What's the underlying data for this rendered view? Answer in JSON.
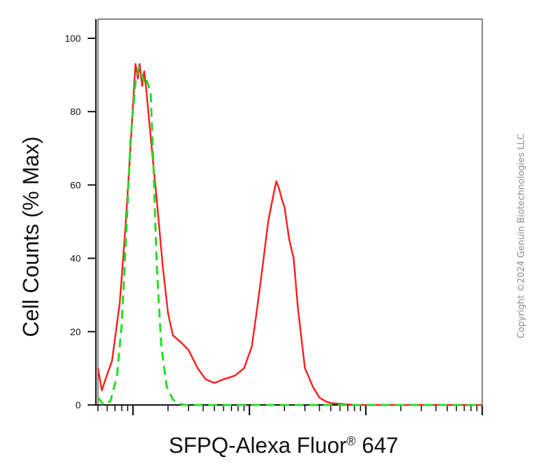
{
  "chart_data": {
    "type": "line",
    "xlabel": "SFPQ-Alexa Fluor",
    "xlabel_superscript": "®",
    "xlabel_suffix": " 647",
    "ylabel": "Cell Counts (% Max)",
    "ylim": [
      0,
      100
    ],
    "yticks": [
      "0",
      "20",
      "40",
      "60",
      "80",
      "100"
    ],
    "xscale": "log",
    "xlim": [
      0.5,
      1000
    ],
    "grid": false,
    "series": [
      {
        "color": "#ff2020",
        "style": "solid",
        "x": [
          0.5,
          0.54,
          0.58,
          0.66,
          0.77,
          0.86,
          0.95,
          1.0,
          1.05,
          1.1,
          1.14,
          1.2,
          1.25,
          1.3,
          1.4,
          1.6,
          1.8,
          2.0,
          2.2,
          2.6,
          3.0,
          3.6,
          4.2,
          5.0,
          6.0,
          7.5,
          9.0,
          10.5,
          11.5,
          13.0,
          14.5,
          16,
          17,
          18,
          19,
          20,
          22,
          24,
          26,
          28,
          30,
          32,
          35,
          40,
          45,
          50,
          60,
          80,
          120,
          200,
          400,
          1000
        ],
        "y": [
          10,
          4,
          7,
          12,
          28,
          48,
          70,
          82,
          93,
          89,
          93,
          87,
          91,
          86,
          75,
          56,
          38,
          25,
          19,
          17,
          15,
          10,
          7,
          6,
          7,
          8,
          10,
          16,
          25,
          38,
          50,
          57,
          61,
          59,
          56,
          54,
          45,
          40,
          27,
          18,
          10,
          8,
          5,
          2,
          1,
          0.5,
          0.3,
          0,
          0,
          0,
          0,
          0
        ]
      },
      {
        "color": "#22dd22",
        "style": "dashed",
        "x": [
          0.5,
          0.56,
          0.64,
          0.73,
          0.8,
          0.87,
          0.95,
          1.05,
          1.12,
          1.17,
          1.24,
          1.3,
          1.36,
          1.42,
          1.5,
          1.6,
          1.75,
          1.95,
          2.2,
          2.5,
          2.8,
          3.2,
          4,
          6,
          10,
          30,
          100,
          1000
        ],
        "y": [
          2,
          0,
          1,
          8,
          22,
          45,
          72,
          88,
          92,
          91,
          88,
          89,
          87,
          85,
          65,
          38,
          16,
          5,
          1.5,
          0.3,
          0,
          0,
          0,
          0,
          0,
          0,
          0,
          0
        ]
      }
    ]
  },
  "watermark": "Copyright ©2024 Genuin Biotechnologies LLC"
}
